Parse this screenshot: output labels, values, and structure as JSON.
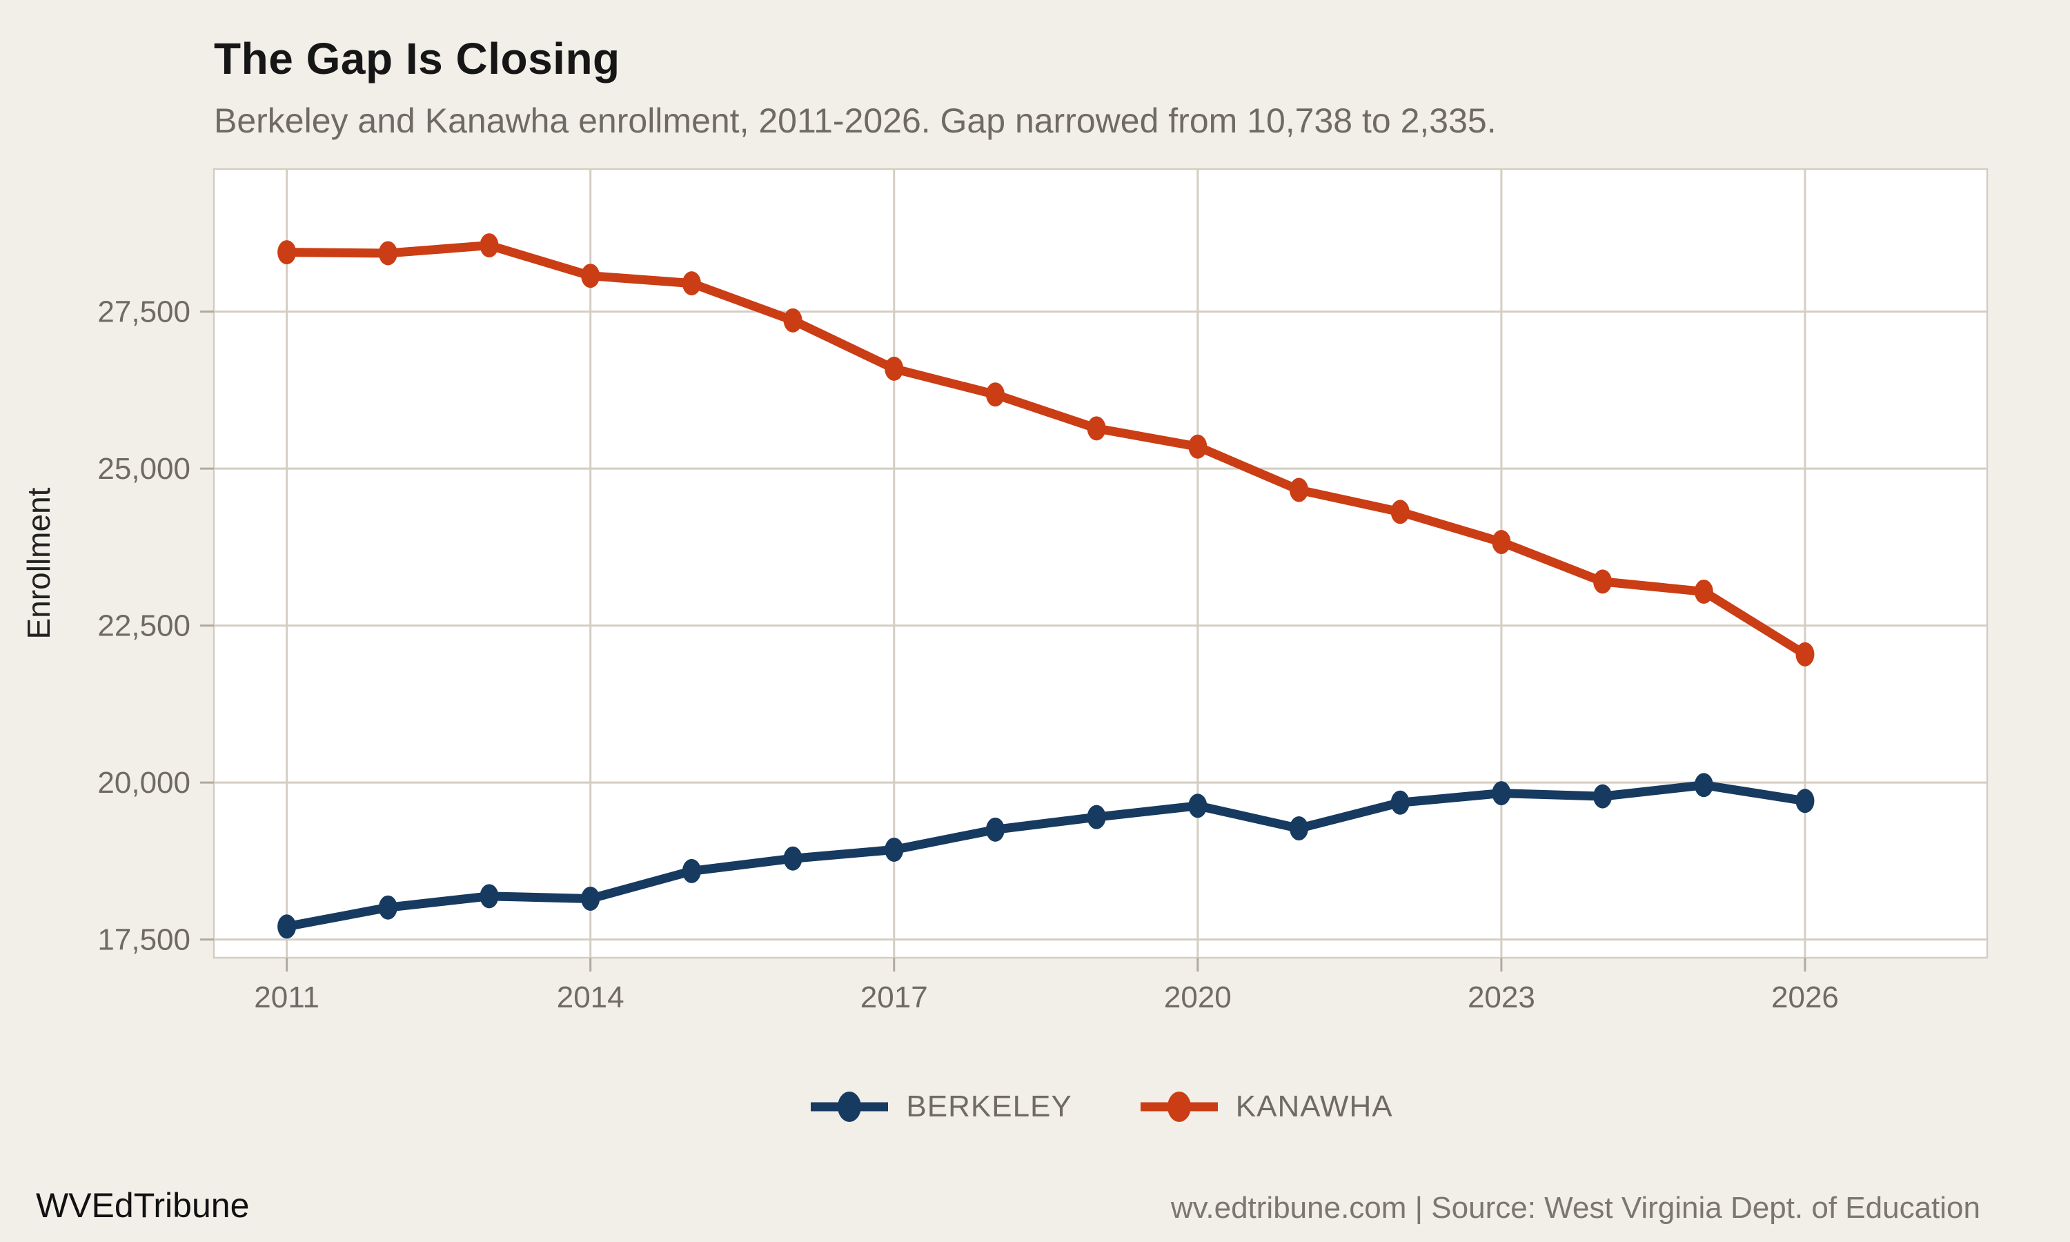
{
  "title": "The Gap Is Closing",
  "subtitle": "Berkeley and Kanawha enrollment, 2011-2026. Gap narrowed from 10,738 to 2,335.",
  "y_axis_label": "Enrollment",
  "legend": [
    {
      "label": "BERKELEY",
      "color": "#173a60"
    },
    {
      "label": "KANAWHA",
      "color": "#cb3d14"
    }
  ],
  "footer": {
    "brand": "WVEdTribune",
    "source": "wv.edtribune.com | Source: West Virginia Dept. of Education"
  },
  "colors": {
    "page_background": "#f2efe9",
    "panel_background": "#ffffff",
    "gridline": "#d4cec2",
    "tick": "#b0aa9e",
    "berkeley": "#173a60",
    "kanawha": "#cb3d14",
    "title_text": "#161616",
    "muted_text": "#6f6b64"
  },
  "chart_data": {
    "type": "line",
    "x": [
      2011,
      2012,
      2013,
      2014,
      2015,
      2016,
      2017,
      2018,
      2019,
      2020,
      2021,
      2022,
      2023,
      2024,
      2025,
      2026
    ],
    "series": [
      {
        "name": "BERKELEY",
        "color": "#173a60",
        "values": [
          17707,
          18010,
          18190,
          18150,
          18590,
          18790,
          18930,
          19250,
          19450,
          19630,
          19270,
          19680,
          19830,
          19780,
          19960,
          19707
        ]
      },
      {
        "name": "KANAWHA",
        "color": "#cb3d14",
        "values": [
          28445,
          28430,
          28555,
          28070,
          27950,
          27360,
          26590,
          26180,
          25640,
          25350,
          24660,
          24310,
          23830,
          23200,
          23040,
          22042
        ]
      }
    ],
    "xticks": [
      2011,
      2014,
      2017,
      2020,
      2023,
      2026
    ],
    "yticks": [
      17500,
      20000,
      22500,
      25000,
      27500
    ],
    "xlim": [
      2010.28,
      2027.8
    ],
    "ylim": [
      17210,
      29770
    ],
    "gap_start": "10,738",
    "gap_end": "2,335",
    "grid": true,
    "legend_position": "bottom",
    "xlabel": "",
    "ylabel": "Enrollment"
  }
}
